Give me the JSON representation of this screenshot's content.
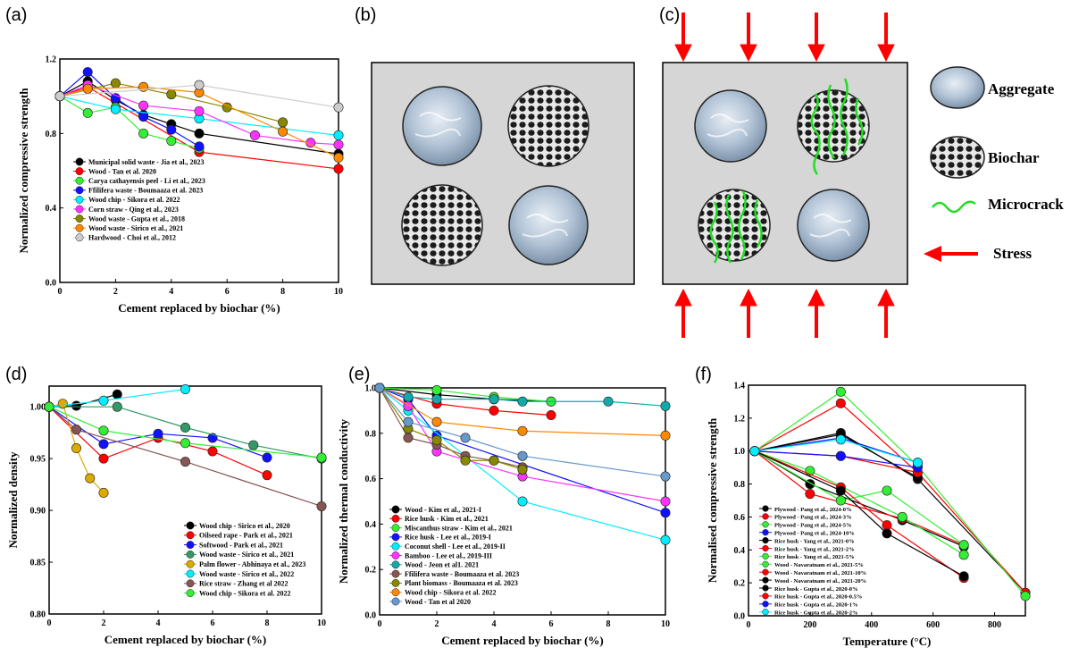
{
  "panels": {
    "a": "(a)",
    "b": "(b)",
    "c": "(c)",
    "d": "(d)",
    "e": "(e)",
    "f": "(f)"
  },
  "diagram": {
    "legend": {
      "aggregate": "Aggregate",
      "biochar": "Biochar",
      "microcrack": "Microcrack",
      "stress": "Stress"
    },
    "colors": {
      "box": "#d6d6d6",
      "arrow": "#ff0000",
      "crack": "#22dd22"
    }
  },
  "chart_data": [
    {
      "id": "a",
      "type": "line",
      "xlabel": "Cement replaced by biochar (%)",
      "ylabel": "Normalized compressive strength",
      "xlim": [
        0,
        10
      ],
      "ylim": [
        0,
        1.2
      ],
      "xticks": [
        0,
        2,
        4,
        6,
        8,
        10
      ],
      "yticks": [
        0,
        0.4,
        0.8,
        1.2
      ],
      "ytick_labels": [
        "0.0",
        "0.4",
        "0.8",
        "1.2"
      ],
      "legend": "bottom-left",
      "series": [
        {
          "name": "Municipal solid waste - Jia et al., 2023",
          "color": "#000000",
          "x": [
            0,
            1,
            2,
            3,
            4,
            5,
            10
          ],
          "y": [
            1.0,
            1.08,
            0.98,
            0.9,
            0.85,
            0.8,
            0.69
          ]
        },
        {
          "name": "Wood - Tan et al. 2020",
          "color": "#ff0000",
          "x": [
            0,
            1,
            5,
            10
          ],
          "y": [
            1.0,
            1.05,
            0.7,
            0.61
          ]
        },
        {
          "name": "Carya cathayensis peel - Li et al., 2023",
          "color": "#33ee33",
          "x": [
            0,
            1,
            2,
            3,
            4,
            5
          ],
          "y": [
            1.0,
            0.91,
            0.94,
            0.8,
            0.76,
            0.72
          ]
        },
        {
          "name": "Ffilifera waste - Boumaaza et al. 2023",
          "color": "#1111ff",
          "x": [
            0,
            1,
            2,
            3,
            4,
            5
          ],
          "y": [
            1.0,
            1.13,
            0.99,
            0.89,
            0.82,
            0.73
          ]
        },
        {
          "name": "Wood chip - Sikora et al. 2022",
          "color": "#00eeff",
          "x": [
            0,
            2,
            5,
            10
          ],
          "y": [
            1.0,
            0.93,
            0.88,
            0.79
          ]
        },
        {
          "name": "Corn straw - Qing et al., 2023",
          "color": "#ff33ff",
          "x": [
            0,
            1,
            3,
            5,
            7,
            9,
            10
          ],
          "y": [
            1.0,
            1.06,
            0.95,
            0.92,
            0.79,
            0.75,
            0.74
          ]
        },
        {
          "name": "Wood waste - Gupta et al., 2018",
          "color": "#888800",
          "x": [
            0,
            2,
            4,
            6,
            8
          ],
          "y": [
            1.0,
            1.07,
            1.01,
            0.94,
            0.86
          ]
        },
        {
          "name": "Wood waste - Sirico et al., 2021",
          "color": "#ff8800",
          "x": [
            0,
            1,
            3,
            5,
            8,
            10
          ],
          "y": [
            1.0,
            1.04,
            1.05,
            1.02,
            0.81,
            0.67
          ]
        },
        {
          "name": "Hardwood - Choi et al., 2012",
          "color": "#cccccc",
          "x": [
            0,
            5,
            10
          ],
          "y": [
            1.0,
            1.06,
            0.94
          ]
        }
      ]
    },
    {
      "id": "d",
      "type": "line",
      "xlabel": "Cement replaced by biochar (%)",
      "ylabel": "Normalized density",
      "xlim": [
        0,
        10
      ],
      "ylim": [
        0.8,
        1.02
      ],
      "xticks": [
        0,
        2,
        4,
        6,
        8,
        10
      ],
      "yticks": [
        0.8,
        0.85,
        0.9,
        0.95,
        1.0
      ],
      "ytick_labels": [
        "0.80",
        "0.85",
        "0.90",
        "0.95",
        "1.00"
      ],
      "legend": "bottom-right",
      "series": [
        {
          "name": "Wood chip - Sirico et al., 2020",
          "color": "#000000",
          "x": [
            0,
            1,
            2.5
          ],
          "y": [
            1.0,
            1.001,
            1.012
          ]
        },
        {
          "name": "Oilseed rape  - Park et al., 2021",
          "color": "#ff0000",
          "x": [
            0,
            2,
            4,
            6,
            8
          ],
          "y": [
            1.0,
            0.95,
            0.97,
            0.957,
            0.934
          ]
        },
        {
          "name": "Softwood    - Park et al., 2021",
          "color": "#1111ff",
          "x": [
            0,
            2,
            4,
            6,
            8
          ],
          "y": [
            1.0,
            0.964,
            0.974,
            0.97,
            0.951
          ]
        },
        {
          "name": "Wood waste - Sirico et al., 2021",
          "color": "#339966",
          "x": [
            0,
            2.5,
            5,
            7.5,
            10
          ],
          "y": [
            1.0,
            1.0,
            0.98,
            0.963,
            0.95
          ]
        },
        {
          "name": "Palm flower - Abhinaya et al., 2023",
          "color": "#ddaa00",
          "x": [
            0,
            0.5,
            1,
            1.5,
            2
          ],
          "y": [
            1.0,
            1.003,
            0.96,
            0.931,
            0.917
          ]
        },
        {
          "name": "Wood waste - Sirico et al., 2022",
          "color": "#00eeff",
          "x": [
            0,
            2,
            5
          ],
          "y": [
            1.0,
            1.006,
            1.017
          ]
        },
        {
          "name": "Rice straw - Zhang et al 2022",
          "color": "#885555",
          "x": [
            0,
            1,
            5,
            10
          ],
          "y": [
            1.0,
            0.978,
            0.947,
            0.904
          ]
        },
        {
          "name": "Wood chip - Sikora et al. 2022",
          "color": "#33ee33",
          "x": [
            0,
            2,
            5,
            10
          ],
          "y": [
            1.0,
            0.977,
            0.965,
            0.951
          ]
        }
      ]
    },
    {
      "id": "e",
      "type": "line",
      "xlabel": "Cement replaced by biochar (%)",
      "ylabel": "Normalized thermal conductivity",
      "xlim": [
        0,
        10
      ],
      "ylim": [
        0,
        1.0
      ],
      "xticks": [
        0,
        2,
        4,
        6,
        8,
        10
      ],
      "yticks": [
        0,
        0.2,
        0.4,
        0.6,
        0.8,
        1.0
      ],
      "ytick_labels": [
        "0.0",
        "0.2",
        "0.4",
        "0.6",
        "0.8",
        "1.0"
      ],
      "legend": "bottom-left",
      "series": [
        {
          "name": "Wood - Kim et al., 2021-I",
          "color": "#000000",
          "x": [
            0,
            2,
            4,
            6
          ],
          "y": [
            1.0,
            0.97,
            0.95,
            0.94
          ]
        },
        {
          "name": "Rice husk - Kim et al., 2021",
          "color": "#ff0000",
          "x": [
            0,
            2,
            4,
            6
          ],
          "y": [
            1.0,
            0.93,
            0.9,
            0.88
          ]
        },
        {
          "name": "Miscanthus straw - Kim et al., 2021",
          "color": "#33ee33",
          "x": [
            0,
            2,
            4,
            6
          ],
          "y": [
            1.0,
            0.99,
            0.96,
            0.94
          ]
        },
        {
          "name": "Rice husk - Lee et al., 2019-I",
          "color": "#1111ff",
          "x": [
            0,
            1,
            2,
            10
          ],
          "y": [
            1.0,
            0.95,
            0.79,
            0.45
          ]
        },
        {
          "name": "Coconut shell - Lee et al., 2019-II",
          "color": "#00eeff",
          "x": [
            0,
            1,
            5,
            10
          ],
          "y": [
            1.0,
            0.9,
            0.5,
            0.33
          ]
        },
        {
          "name": "Bamboo - Lee et al., 2019-III",
          "color": "#ff33ff",
          "x": [
            0,
            1,
            2,
            5,
            10
          ],
          "y": [
            1.0,
            0.92,
            0.72,
            0.61,
            0.5
          ]
        },
        {
          "name": "Wood - Jeon et al1. 2021",
          "color": "#11aaaa",
          "x": [
            0,
            1,
            2,
            4,
            5,
            8,
            10
          ],
          "y": [
            1.0,
            0.96,
            0.95,
            0.95,
            0.94,
            0.94,
            0.92
          ]
        },
        {
          "name": "Ffilifera waste - Boumaaza et al. 2023",
          "color": "#885555",
          "x": [
            0,
            1,
            2,
            3,
            4,
            5
          ],
          "y": [
            1.0,
            0.78,
            0.75,
            0.7,
            0.68,
            0.65
          ]
        },
        {
          "name": "Plant biomass - Boumaaza et al. 2023",
          "color": "#888800",
          "x": [
            0,
            1,
            2,
            3,
            4,
            5
          ],
          "y": [
            1.0,
            0.82,
            0.77,
            0.68,
            0.68,
            0.64
          ]
        },
        {
          "name": "Wood chip - Sikora et al. 2022",
          "color": "#ff8800",
          "x": [
            0,
            2,
            5,
            10
          ],
          "y": [
            1.0,
            0.85,
            0.81,
            0.79
          ]
        },
        {
          "name": "Wood - Tan et al 2020",
          "color": "#6699cc",
          "x": [
            0,
            1,
            3,
            5,
            10
          ],
          "y": [
            1.0,
            0.85,
            0.78,
            0.7,
            0.61
          ]
        }
      ]
    },
    {
      "id": "f",
      "type": "line",
      "xlabel": "Temperature (°C)",
      "ylabel": "Normalised compressive strength",
      "xlim": [
        0,
        900
      ],
      "ylim": [
        0,
        1.4
      ],
      "xticks": [
        0,
        200,
        400,
        600,
        800
      ],
      "yticks": [
        0,
        0.2,
        0.4,
        0.6,
        0.8,
        1.0,
        1.2,
        1.4
      ],
      "ytick_labels": [
        "0.0",
        "0.2",
        "0.4",
        "0.6",
        "0.8",
        "1.0",
        "1.2",
        "1.4"
      ],
      "legend": "bottom-left",
      "series": [
        {
          "name": "Plywood - Pang et al., 2024-0%",
          "color": "#000000",
          "x": [
            20,
            300,
            550,
            900
          ],
          "y": [
            1.0,
            1.11,
            0.83,
            0.14
          ]
        },
        {
          "name": "Plywood - Pang et al., 2024-3%",
          "color": "#ff0000",
          "x": [
            20,
            300,
            550,
            900
          ],
          "y": [
            1.0,
            1.29,
            0.87,
            0.14
          ]
        },
        {
          "name": "Plywood - Pang et al., 2024-5%",
          "color": "#33ee33",
          "x": [
            20,
            300,
            550,
            900
          ],
          "y": [
            1.0,
            1.36,
            0.91,
            0.12
          ]
        },
        {
          "name": "Plywood - Pang et al., 2024-10%",
          "color": "#1111ff",
          "x": [
            20,
            300,
            550
          ],
          "y": [
            1.0,
            1.08,
            0.93
          ]
        },
        {
          "name": "Rice husk - Yang et al., 2021-0%",
          "color": "#000000",
          "x": [
            20,
            200,
            500,
            700
          ],
          "y": [
            1.0,
            0.8,
            0.58,
            0.42
          ]
        },
        {
          "name": "Rice husk - Yang et al., 2021-2%",
          "color": "#ff0000",
          "x": [
            20,
            200,
            500,
            700
          ],
          "y": [
            1.0,
            0.74,
            0.59,
            0.43
          ]
        },
        {
          "name": "Rice husk - Yang et al., 2021-5%",
          "color": "#33ee33",
          "x": [
            20,
            200,
            500,
            700
          ],
          "y": [
            1.0,
            0.88,
            0.6,
            0.37
          ]
        },
        {
          "name": "Wood - Navaratnam et al., 2021-5%",
          "color": "#33ee33",
          "x": [
            20,
            300,
            450,
            700
          ],
          "y": [
            1.0,
            0.7,
            0.76,
            0.43
          ]
        },
        {
          "name": "Wood - Navaratnam et al., 2021-10%",
          "color": "#ff0000",
          "x": [
            20,
            300,
            450,
            700
          ],
          "y": [
            1.0,
            0.78,
            0.55,
            0.23
          ]
        },
        {
          "name": "Wood - Navaratnam et al., 2021-20%",
          "color": "#000000",
          "x": [
            20,
            300,
            450,
            700
          ],
          "y": [
            1.0,
            0.76,
            0.5,
            0.24
          ]
        },
        {
          "name": "Rice husk - Gupta et al., 2020-0%",
          "color": "#000000",
          "x": [
            20,
            300,
            550
          ],
          "y": [
            1.0,
            1.1,
            0.84
          ]
        },
        {
          "name": "Rice husk - Gupta et al., 2020-0.5%",
          "color": "#ff0000",
          "x": [
            20,
            300,
            550
          ],
          "y": [
            1.0,
            0.97,
            0.87
          ]
        },
        {
          "name": "Rice husk - Gupta et al., 2020-1%",
          "color": "#1111ff",
          "x": [
            20,
            300,
            550
          ],
          "y": [
            1.0,
            0.97,
            0.9
          ]
        },
        {
          "name": "Rice husk - Gupta et al., 2020-2%",
          "color": "#00eeff",
          "x": [
            20,
            300,
            550
          ],
          "y": [
            1.0,
            1.07,
            0.93
          ]
        }
      ]
    }
  ]
}
